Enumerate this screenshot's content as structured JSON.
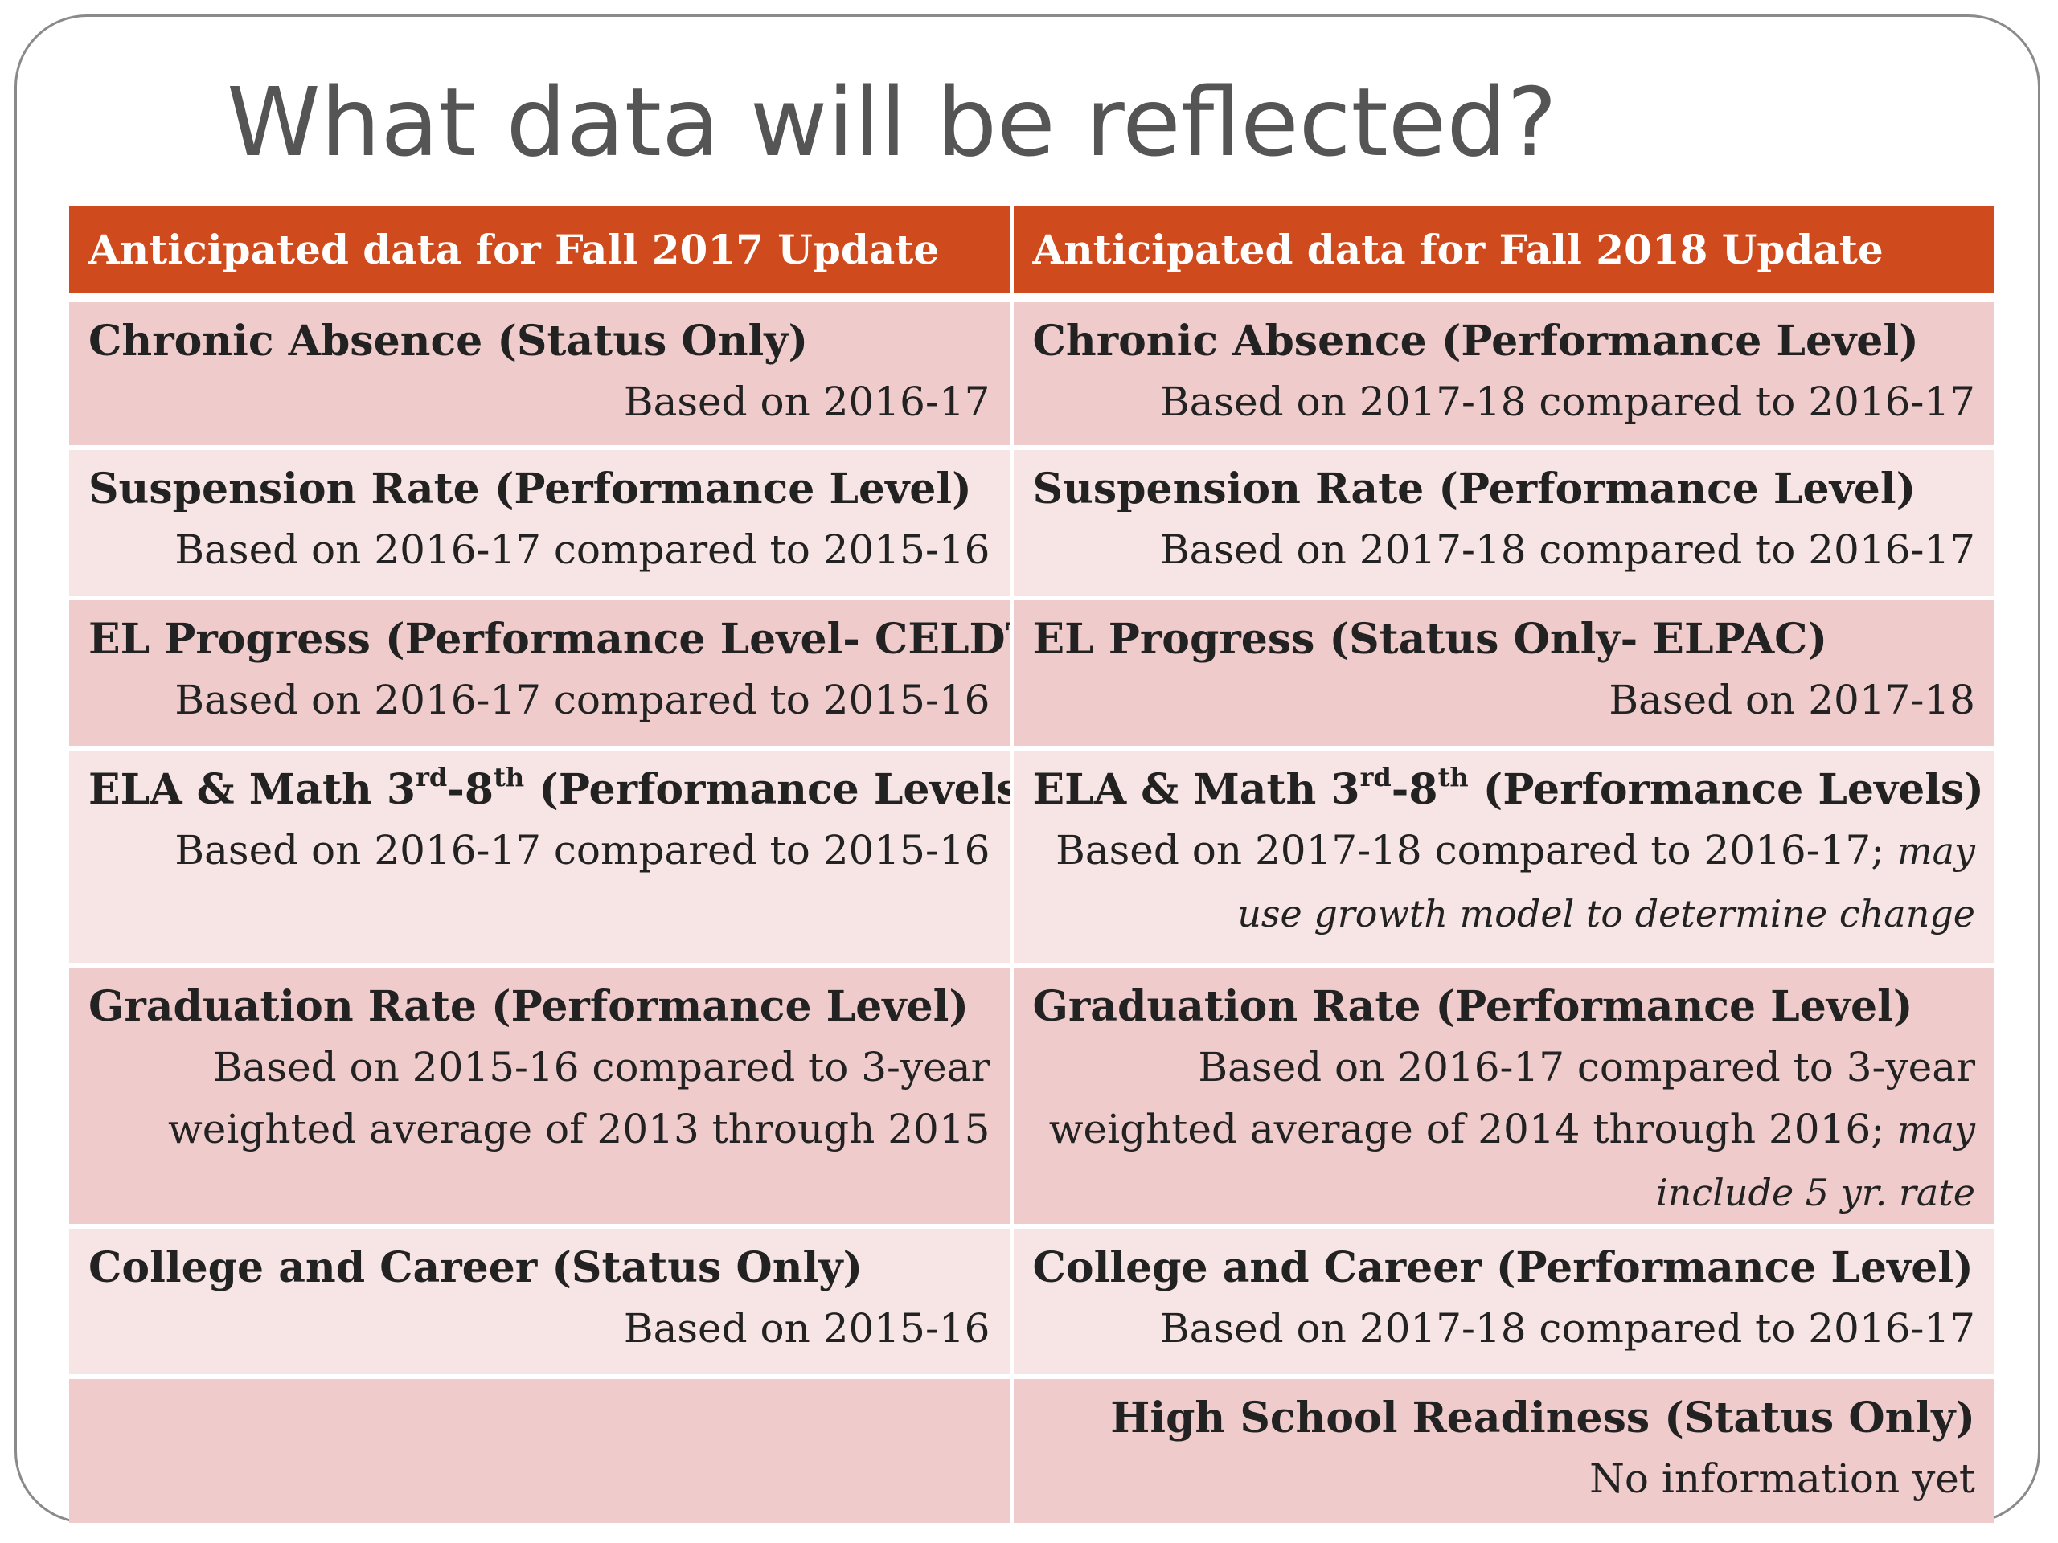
{
  "slide": {
    "title": "What data will be reflected?"
  },
  "table": {
    "headers": [
      "Anticipated data for Fall 2017 Update",
      "Anticipated data for Fall 2018 Update"
    ],
    "rows": [
      {
        "left": {
          "title": "Chronic Absence (Status Only)",
          "detail": "Based on 2016-17"
        },
        "right": {
          "title": "Chronic Absence (Performance Level)",
          "detail": "Based on 2017-18 compared to 2016-17"
        }
      },
      {
        "left": {
          "title": "Suspension Rate (Performance Level)",
          "detail": "Based on 2016-17 compared to 2015-16"
        },
        "right": {
          "title": "Suspension Rate (Performance Level)",
          "detail": "Based on 2017-18 compared to 2016-17"
        }
      },
      {
        "left": {
          "title": "EL Progress (Performance Level- CELDT)",
          "detail": "Based on 2016-17 compared to 2015-16"
        },
        "right": {
          "title": "EL Progress (Status Only- ELPAC)",
          "detail": "Based on 2017-18"
        }
      },
      {
        "left": {
          "title_pre": "ELA & Math 3",
          "title_sup1": "rd",
          "title_mid": "-8",
          "title_sup2": "th",
          "title_post": " (Performance Levels)",
          "detail": "Based on 2016-17 compared to 2015-16"
        },
        "right": {
          "title_pre": "ELA & Math 3",
          "title_sup1": "rd",
          "title_mid": "-8",
          "title_sup2": "th",
          "title_post": " (Performance Levels)",
          "detail": "Based on 2017-18 compared to 2016-17;",
          "note": "may use growth model to determine change"
        }
      },
      {
        "left": {
          "title": "Graduation Rate (Performance Level)",
          "detail": "Based on 2015-16 compared to 3-year weighted average of 2013 through 2015"
        },
        "right": {
          "title": "Graduation Rate (Performance Level)",
          "detail": "Based on 2016-17 compared to 3-year weighted average of 2014 through 2016;",
          "note": "may include 5 yr. rate"
        }
      },
      {
        "left": {
          "title": "College and Career (Status Only)",
          "detail": "Based on 2015-16"
        },
        "right": {
          "title": "College and Career (Performance Level)",
          "detail": "Based on 2017-18 compared to 2016-17"
        }
      },
      {
        "left": {
          "title": "",
          "detail": ""
        },
        "right": {
          "title": "High School Readiness (Status Only)",
          "detail": "No information yet"
        }
      }
    ]
  },
  "colors": {
    "header_bg": "#cf4a1c",
    "row_dark": "#efcbcb",
    "row_light": "#f7e4e4",
    "title_text": "#555555"
  }
}
